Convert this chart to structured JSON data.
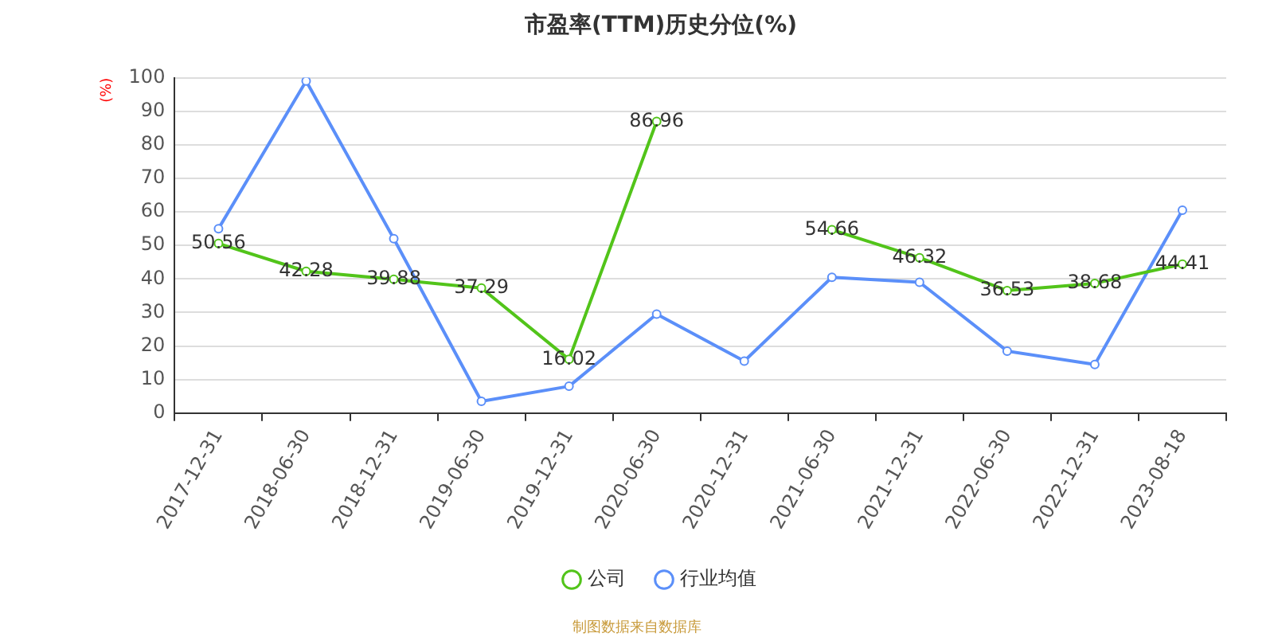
{
  "chart_data": {
    "type": "line",
    "title": "市盈率(TTM)历史分位(%)",
    "ylabel": "(%)",
    "categories": [
      "2017-12-31",
      "2018-06-30",
      "2018-12-31",
      "2019-06-30",
      "2019-12-31",
      "2020-06-30",
      "2020-12-31",
      "2021-06-30",
      "2021-12-31",
      "2022-06-30",
      "2022-12-31",
      "2023-08-18"
    ],
    "series": [
      {
        "name": "公司",
        "color": "#52c41a",
        "values": [
          50.56,
          42.28,
          39.88,
          37.29,
          16.02,
          86.96,
          null,
          54.66,
          46.32,
          36.53,
          38.68,
          44.41
        ],
        "value_labels": [
          "50.56",
          "42.28",
          "39.88",
          "37.29",
          "16.02",
          "86.96",
          null,
          "54.66",
          "46.32",
          "36.53",
          "38.68",
          "44.41"
        ]
      },
      {
        "name": "行业均值",
        "color": "#5b8ff9",
        "values": [
          55,
          99,
          52,
          3.5,
          8,
          29.5,
          15.5,
          40.5,
          39,
          18.5,
          14.5,
          60.5
        ]
      }
    ],
    "ylim": [
      0,
      100
    ],
    "yticks": [
      0,
      10,
      20,
      30,
      40,
      50,
      60,
      70,
      80,
      90,
      100
    ],
    "grid": "y",
    "legend": "bottom",
    "marker": "circle",
    "line_style": "solid",
    "annotations": [
      "制图数据来自数据库"
    ]
  }
}
